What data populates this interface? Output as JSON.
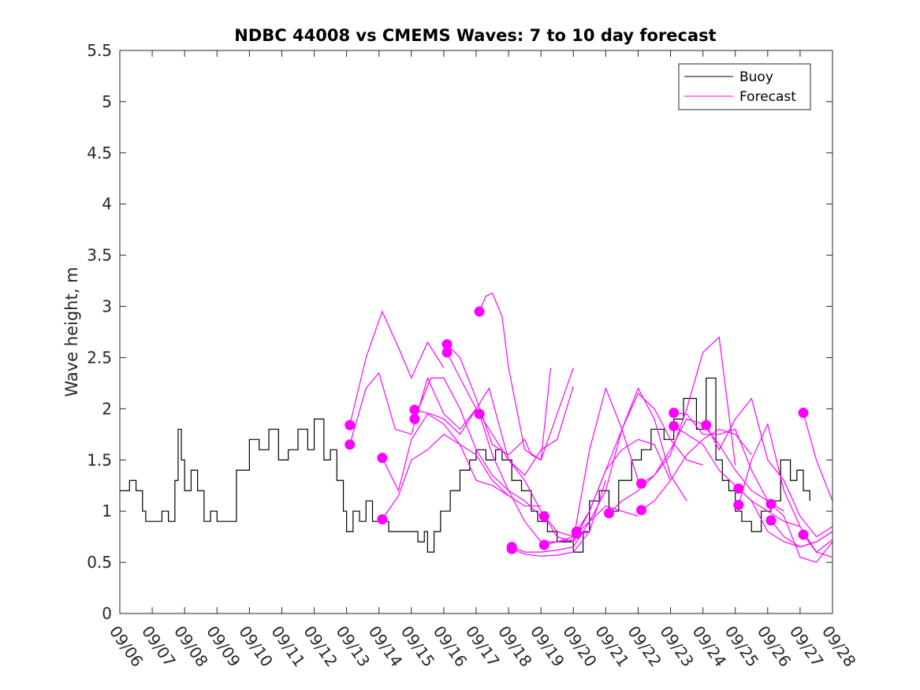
{
  "chart_data": {
    "type": "line",
    "title": "NDBC 44008 vs CMEMS Waves: 7 to 10 day forecast",
    "xlabel": "",
    "ylabel": "Wave height, m",
    "xlim": [
      0,
      22
    ],
    "ylim": [
      0,
      5.5
    ],
    "yticks": [
      0,
      0.5,
      1,
      1.5,
      2,
      2.5,
      3,
      3.5,
      4,
      4.5,
      5,
      5.5
    ],
    "ytick_labels": [
      "0",
      "0.5",
      "1",
      "1.5",
      "2",
      "2.5",
      "3",
      "3.5",
      "4",
      "4.5",
      "5",
      "5.5"
    ],
    "xtick_labels": [
      "09/06",
      "09/07",
      "09/08",
      "09/09",
      "09/10",
      "09/11",
      "09/12",
      "09/13",
      "09/14",
      "09/15",
      "09/16",
      "09/17",
      "09/18",
      "09/19",
      "09/20",
      "09/21",
      "09/22",
      "09/23",
      "09/24",
      "09/25",
      "09/26",
      "09/27",
      "09/28"
    ],
    "legend": {
      "position": "top-right",
      "entries": [
        {
          "label": "Buoy",
          "color": "#000000"
        },
        {
          "label": "Forecast",
          "color": "#ff00ff"
        }
      ]
    },
    "buoy": {
      "name": "Buoy",
      "color": "#000000",
      "x": [
        0,
        0.3,
        0.5,
        0.7,
        0.8,
        1.0,
        1.3,
        1.5,
        1.7,
        1.8,
        1.9,
        2.0,
        2.2,
        2.4,
        2.6,
        2.8,
        3.0,
        3.3,
        3.6,
        4.0,
        4.3,
        4.6,
        4.9,
        5.2,
        5.5,
        5.8,
        6.0,
        6.3,
        6.5,
        6.7,
        6.9,
        7.0,
        7.2,
        7.4,
        7.6,
        7.8,
        8.0,
        8.3,
        8.6,
        8.9,
        9.2,
        9.4,
        9.5,
        9.7,
        9.9,
        10.2,
        10.5,
        10.8,
        11.0,
        11.3,
        11.6,
        11.8,
        12.1,
        12.4,
        12.7,
        12.9,
        13.2,
        13.5,
        13.8,
        14.0,
        14.3,
        14.5,
        14.8,
        15.1,
        15.4,
        15.8,
        16.1,
        16.4,
        16.8,
        17.1,
        17.4,
        17.8,
        18.1,
        18.4,
        18.6,
        18.8,
        19.0,
        19.2,
        19.5,
        19.8,
        20.1,
        20.4,
        20.7,
        20.9,
        21.1,
        21.3
      ],
      "y": [
        1.2,
        1.3,
        1.2,
        1.0,
        0.9,
        0.9,
        1.0,
        0.9,
        1.3,
        1.8,
        1.5,
        1.2,
        1.4,
        1.2,
        0.9,
        1.0,
        0.9,
        0.9,
        1.4,
        1.7,
        1.6,
        1.8,
        1.5,
        1.6,
        1.8,
        1.6,
        1.9,
        1.5,
        1.6,
        1.3,
        1.0,
        0.8,
        1.0,
        0.9,
        1.1,
        0.9,
        0.9,
        0.8,
        0.8,
        0.8,
        0.7,
        0.8,
        0.6,
        0.8,
        1.0,
        1.2,
        1.4,
        1.5,
        1.6,
        1.5,
        1.6,
        1.5,
        1.3,
        1.2,
        1.0,
        0.9,
        0.8,
        0.7,
        0.7,
        0.6,
        0.8,
        1.1,
        1.2,
        1.0,
        1.3,
        1.5,
        1.6,
        1.8,
        1.7,
        1.9,
        2.1,
        1.8,
        2.3,
        1.5,
        1.3,
        1.2,
        1.0,
        0.9,
        0.8,
        1.0,
        1.1,
        1.5,
        1.3,
        1.4,
        1.2,
        1.1
      ]
    },
    "forecasts": [
      {
        "name": "Forecast 09/13a",
        "color": "#ff00ff",
        "x": [
          7.1,
          7.6,
          8.1,
          8.6,
          9.0,
          9.5,
          10.0
        ],
        "y": [
          1.84,
          2.5,
          2.95,
          2.6,
          2.3,
          2.65,
          2.4
        ]
      },
      {
        "name": "Forecast 09/13b",
        "color": "#ff00ff",
        "x": [
          7.1,
          7.6,
          8.0,
          8.5,
          9.0,
          9.5,
          10.0,
          10.5,
          11.0
        ],
        "y": [
          1.65,
          2.2,
          2.35,
          1.8,
          1.75,
          2.3,
          1.95,
          1.8,
          2.0
        ]
      },
      {
        "name": "Forecast 09/14",
        "color": "#ff00ff",
        "x": [
          8.1,
          8.6,
          9.0,
          9.5,
          10.0,
          10.5,
          11.0,
          11.5,
          12.0,
          12.5,
          13.0
        ],
        "y": [
          0.92,
          1.15,
          1.5,
          1.6,
          1.75,
          1.65,
          1.55,
          1.3,
          1.15,
          1.05,
          1.05
        ]
      },
      {
        "name": "Forecast 09/14b",
        "color": "#ff00ff",
        "x": [
          8.1,
          8.6,
          9.0,
          9.5,
          10.0,
          10.5,
          11.0,
          11.5,
          12.0
        ],
        "y": [
          1.52,
          1.2,
          1.7,
          1.95,
          1.85,
          1.65,
          1.3,
          1.25,
          1.15
        ]
      },
      {
        "name": "Forecast 09/15a",
        "color": "#ff00ff",
        "x": [
          9.1,
          9.6,
          10.0,
          10.5,
          11.0,
          11.4,
          12.0,
          12.5,
          13.0,
          13.5,
          14.0
        ],
        "y": [
          1.99,
          1.95,
          1.9,
          1.75,
          2.0,
          2.2,
          1.5,
          1.35,
          1.6,
          1.7,
          2.22
        ]
      },
      {
        "name": "Forecast 09/15b",
        "color": "#ff00ff",
        "x": [
          9.1,
          9.6,
          10.0,
          10.5,
          11.0,
          11.5,
          12.0,
          12.5,
          13.0
        ],
        "y": [
          1.9,
          2.3,
          2.3,
          2.0,
          1.6,
          1.35,
          1.2,
          1.1,
          0.95
        ]
      },
      {
        "name": "Forecast 09/16a",
        "color": "#ff00ff",
        "x": [
          10.1,
          10.5,
          11.0,
          11.5,
          12.0,
          12.5,
          12.7,
          13.0,
          14.0
        ],
        "y": [
          2.63,
          2.5,
          2.1,
          1.65,
          1.55,
          1.7,
          1.55,
          1.5,
          2.4
        ]
      },
      {
        "name": "Forecast 09/16b",
        "color": "#ff00ff",
        "x": [
          10.1,
          10.5,
          11.0,
          11.5,
          12.0,
          12.5,
          13.0,
          13.5,
          14.0
        ],
        "y": [
          2.55,
          2.3,
          2.0,
          1.75,
          1.5,
          1.3,
          1.0,
          0.8,
          0.75
        ]
      },
      {
        "name": "Forecast 09/17a",
        "color": "#ff00ff",
        "x": [
          11.1,
          11.3,
          11.5,
          11.8,
          12.0,
          12.5,
          13.0,
          13.3
        ],
        "y": [
          2.95,
          3.1,
          3.13,
          2.9,
          2.4,
          1.6,
          1.5,
          2.4
        ]
      },
      {
        "name": "Forecast 09/17b",
        "color": "#ff00ff",
        "x": [
          11.1,
          11.5,
          12.0,
          12.5,
          13.0,
          13.5,
          14.0,
          14.5
        ],
        "y": [
          1.95,
          1.55,
          1.2,
          0.9,
          0.7,
          0.7,
          0.75,
          0.8
        ]
      },
      {
        "name": "Forecast 09/18a",
        "color": "#ff00ff",
        "x": [
          12.1,
          12.5,
          13.0,
          13.5,
          14.0,
          14.5,
          15.0,
          15.5,
          16.0
        ],
        "y": [
          0.65,
          0.6,
          0.6,
          0.62,
          0.65,
          0.9,
          1.05,
          1.0,
          0.95
        ]
      },
      {
        "name": "Forecast 09/18b",
        "color": "#ff00ff",
        "x": [
          12.1,
          12.5,
          13.0,
          13.5,
          14.0,
          14.5,
          15.0
        ],
        "y": [
          0.63,
          0.58,
          0.56,
          0.57,
          0.6,
          0.8,
          1.3
        ]
      },
      {
        "name": "Forecast 09/19a",
        "color": "#ff00ff",
        "x": [
          13.1,
          13.5,
          14.0,
          14.5,
          15.0,
          15.5,
          16.0,
          16.5,
          17.0
        ],
        "y": [
          0.95,
          0.75,
          0.7,
          1.0,
          1.4,
          1.6,
          1.7,
          1.65,
          1.3
        ]
      },
      {
        "name": "Forecast 09/19b",
        "color": "#ff00ff",
        "x": [
          13.1,
          13.5,
          14.0,
          14.5,
          15.0,
          15.5,
          16.0
        ],
        "y": [
          0.67,
          0.7,
          0.72,
          1.6,
          2.2,
          1.8,
          1.3
        ]
      },
      {
        "name": "Forecast 09/20a",
        "color": "#ff00ff",
        "x": [
          14.1,
          14.5,
          15.0,
          15.5,
          16.0,
          16.5,
          17.0,
          17.5,
          18.0
        ],
        "y": [
          0.8,
          1.0,
          1.4,
          1.8,
          2.15,
          2.0,
          1.7,
          1.5,
          1.45
        ]
      },
      {
        "name": "Forecast 09/20b",
        "color": "#ff00ff",
        "x": [
          14.1,
          14.5,
          15.0,
          15.5,
          16.0,
          16.5,
          17.0,
          17.5
        ],
        "y": [
          0.78,
          0.9,
          1.2,
          1.8,
          2.2,
          1.9,
          1.35,
          1.1
        ]
      },
      {
        "name": "Forecast 09/21",
        "color": "#ff00ff",
        "x": [
          15.1,
          15.5,
          16.0,
          16.5,
          17.0,
          17.5,
          18.0,
          18.5,
          19.0
        ],
        "y": [
          0.98,
          1.1,
          1.2,
          1.35,
          1.55,
          2.0,
          2.55,
          2.7,
          1.45
        ]
      },
      {
        "name": "Forecast 09/22a",
        "color": "#ff00ff",
        "x": [
          16.1,
          16.5,
          17.0,
          17.5,
          18.0,
          18.5,
          19.0,
          19.5,
          20.0
        ],
        "y": [
          1.27,
          1.35,
          1.6,
          1.9,
          1.85,
          1.65,
          1.4,
          1.2,
          1.1
        ]
      },
      {
        "name": "Forecast 09/22b",
        "color": "#ff00ff",
        "x": [
          16.1,
          16.5,
          17.0,
          17.5,
          18.0,
          18.5,
          19.0,
          19.5
        ],
        "y": [
          1.01,
          1.1,
          1.3,
          1.55,
          1.7,
          1.8,
          1.75,
          1.55
        ]
      },
      {
        "name": "Forecast 09/23a",
        "color": "#ff00ff",
        "x": [
          17.1,
          17.5,
          18.0,
          18.5,
          19.0,
          19.5,
          20.0,
          20.5
        ],
        "y": [
          1.96,
          1.95,
          1.75,
          1.75,
          1.8,
          1.4,
          1.1,
          1.0
        ]
      },
      {
        "name": "Forecast 09/23b",
        "color": "#ff00ff",
        "x": [
          17.1,
          17.5,
          18.0,
          18.5,
          19.0,
          19.5,
          20.0,
          20.5,
          21.0
        ],
        "y": [
          1.83,
          1.75,
          1.65,
          1.4,
          1.25,
          1.1,
          1.0,
          0.9,
          0.85
        ]
      },
      {
        "name": "Forecast 09/24",
        "color": "#ff00ff",
        "x": [
          18.1,
          18.5,
          19.0,
          19.5,
          20.0,
          20.5,
          21.0,
          21.5,
          22.0
        ],
        "y": [
          1.84,
          1.6,
          1.9,
          2.1,
          1.5,
          1.3,
          0.95,
          0.75,
          0.85
        ]
      },
      {
        "name": "Forecast 09/25a",
        "color": "#ff00ff",
        "x": [
          19.1,
          19.5,
          20.0,
          20.5,
          21.0,
          21.5,
          22.0
        ],
        "y": [
          1.22,
          1.1,
          0.8,
          0.7,
          0.65,
          0.7,
          0.8
        ]
      },
      {
        "name": "Forecast 09/25b",
        "color": "#ff00ff",
        "x": [
          19.1,
          19.5,
          20.0,
          20.5,
          21.0,
          21.5,
          22.0
        ],
        "y": [
          1.06,
          1.5,
          1.85,
          1.2,
          0.85,
          0.6,
          0.55
        ]
      },
      {
        "name": "Forecast 09/26a",
        "color": "#ff00ff",
        "x": [
          20.1,
          20.5,
          21.0,
          21.5,
          22.0
        ],
        "y": [
          1.07,
          0.95,
          0.55,
          0.5,
          0.7
        ]
      },
      {
        "name": "Forecast 09/26b",
        "color": "#ff00ff",
        "x": [
          20.1,
          20.5,
          21.0,
          21.5,
          22.0
        ],
        "y": [
          0.91,
          0.75,
          0.65,
          0.7,
          0.8
        ]
      },
      {
        "name": "Forecast 09/27a",
        "color": "#ff00ff",
        "x": [
          21.1,
          21.5,
          22.0
        ],
        "y": [
          1.96,
          1.5,
          1.1
        ]
      },
      {
        "name": "Forecast 09/27b",
        "color": "#ff00ff",
        "x": [
          21.1,
          21.5,
          22.0
        ],
        "y": [
          0.77,
          0.6,
          0.72
        ]
      }
    ]
  }
}
